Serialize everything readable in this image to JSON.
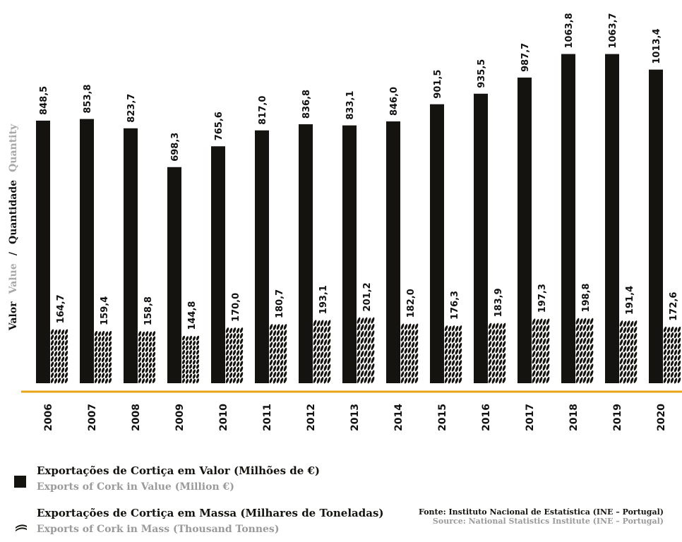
{
  "chart_data": {
    "type": "bar",
    "y_axis_title": {
      "pt_value": "Valor",
      "en_value": "Value",
      "separator": "/",
      "pt_quantity": "Quantidade",
      "en_quantity": "Quantity"
    },
    "categories": [
      "2006",
      "2007",
      "2008",
      "2009",
      "2010",
      "2011",
      "2012",
      "2013",
      "2014",
      "2015",
      "2016",
      "2017",
      "2018",
      "2019",
      "2020"
    ],
    "series": [
      {
        "name": "Exportações de Cortiça em Valor (Milhões de €)",
        "values": [
          848.5,
          853.8,
          823.7,
          698.3,
          765.6,
          817.0,
          836.8,
          833.1,
          846.0,
          901.5,
          935.5,
          987.7,
          1063.8,
          1063.7,
          1013.4
        ],
        "labels": [
          "848,5",
          "853,8",
          "823,7",
          "698,3",
          "765,6",
          "817,0",
          "836,8",
          "833,1",
          "846,0",
          "901,5",
          "935,5",
          "987,7",
          "1063,8",
          "1063,7",
          "1013,4"
        ],
        "color": "#14130f"
      },
      {
        "name": "Exportações de Cortiça em Massa (Milhares de Toneladas)",
        "values": [
          164.7,
          159.4,
          158.8,
          144.8,
          170.0,
          180.7,
          193.1,
          201.2,
          182.0,
          176.3,
          183.9,
          197.3,
          198.8,
          191.4,
          172.6
        ],
        "labels": [
          "164,7",
          "159,4",
          "158,8",
          "144,8",
          "170,0",
          "180,7",
          "193,1",
          "201,2",
          "182,0",
          "176,3",
          "183,9",
          "197,3",
          "198,8",
          "191,4",
          "172,6"
        ],
        "color": "#14130f",
        "marker": "cork-stopper-icon"
      }
    ],
    "axis_line_color": "#e8a317",
    "grid": false
  },
  "legend": {
    "value": {
      "pt": "Exportações de Cortiça em Valor (Milhões de €)",
      "en": "Exports of Cork in Value (Million €)"
    },
    "mass": {
      "pt": "Exportações de Cortiça em Massa (Milhares de Toneladas)",
      "en": "Exports of Cork in Mass (Thousand Tonnes)"
    }
  },
  "source": {
    "pt": "Fonte: Instituto Nacional de Estatística (INE – Portugal)",
    "en": "Source: National Statistics Institute (INE – Portugal)"
  }
}
